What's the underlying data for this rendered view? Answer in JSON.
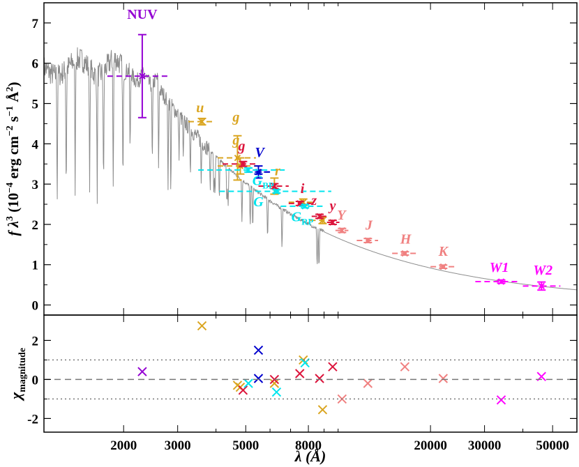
{
  "chart_data": {
    "type": "scatter",
    "subtype": "spectral-energy-distribution",
    "x_axis": {
      "label": "λ (Å)",
      "scale": "log",
      "range": [
        1100,
        60000
      ],
      "ticks": [
        2000,
        3000,
        5000,
        8000,
        20000,
        30000,
        50000
      ],
      "tick_labels": [
        "2000",
        "3000",
        "5000",
        "8000",
        "20000",
        "30000",
        "50000"
      ]
    },
    "top_panel": {
      "ylabel_main": "f λ",
      "ylabel_sup1": "3",
      "ylabel_units_a": "(10",
      "ylabel_units_b": "−4",
      "ylabel_units_c": " erg cm",
      "ylabel_units_d": "−2",
      "ylabel_units_e": " s",
      "ylabel_units_f": "−1",
      "ylabel_units_g": " Å",
      "ylabel_units_h": "2",
      "ylabel_units_i": ")",
      "ylim": [
        -0.25,
        7.5
      ],
      "yticks": [
        0,
        1,
        2,
        3,
        4,
        5,
        6,
        7
      ],
      "ytick_labels": [
        "0",
        "1",
        "2",
        "3",
        "4",
        "5",
        "6",
        "7"
      ]
    },
    "bottom_panel": {
      "ylabel_main": "χ",
      "ylabel_sub": "magnitude",
      "ylim": [
        -2.7,
        3.3
      ],
      "yticks": [
        -2,
        0,
        2
      ],
      "ytick_labels": [
        "-2",
        "0",
        "2"
      ],
      "ref_lines": [
        {
          "y": 0,
          "style": "dashed"
        },
        {
          "y": 1,
          "style": "dotted"
        },
        {
          "y": -1,
          "style": "dotted"
        }
      ]
    },
    "model_spectrum": {
      "name": "model",
      "color": "#8c8c8c"
    },
    "photometry": [
      {
        "band": "NUV",
        "color": "#9400d3",
        "wave": 2300,
        "w_lo": 1770,
        "w_hi": 2830,
        "flux": 5.68,
        "err": 1.03,
        "chi": 0.4
      },
      {
        "band": "u",
        "color": "#daa520",
        "wave": 3600,
        "w_lo": 3250,
        "w_hi": 3950,
        "flux": 4.55,
        "err": 0.08,
        "chi": 2.75
      },
      {
        "band": "g",
        "color": "#daa520",
        "wave": 4700,
        "w_lo": 4050,
        "w_hi": 5400,
        "flux": 3.65,
        "err": 0.55,
        "chi": -0.3
      },
      {
        "band": "g",
        "color": "#daa520",
        "wave": 4800,
        "w_lo": 4050,
        "w_hi": 5550,
        "flux": 3.45,
        "err": 0.2,
        "chi": -0.4
      },
      {
        "band": "r",
        "color": "#daa520",
        "wave": 6200,
        "w_lo": 5500,
        "w_hi": 6900,
        "flux": 2.95,
        "err": 0.2,
        "chi": -0.2
      },
      {
        "band": "i",
        "color": "#daa520",
        "wave": 7700,
        "w_lo": 6900,
        "w_hi": 8400,
        "flux": 2.55,
        "err": 0.08,
        "chi": 1.0
      },
      {
        "band": "z",
        "color": "#daa520",
        "wave": 8900,
        "w_lo": 8100,
        "w_hi": 9600,
        "flux": 2.1,
        "err": 0.08,
        "chi": -1.55
      },
      {
        "band": "g",
        "color": "#dc143c",
        "wave": 4900,
        "w_lo": 4200,
        "w_hi": 5500,
        "flux": 3.5,
        "err": 0.06,
        "chi": -0.55
      },
      {
        "band": "r",
        "color": "#dc143c",
        "wave": 6200,
        "w_lo": 5500,
        "w_hi": 6900,
        "flux": 2.95,
        "err": 0.06,
        "chi": 0.0
      },
      {
        "band": "i",
        "color": "#dc143c",
        "wave": 7500,
        "w_lo": 6900,
        "w_hi": 8200,
        "flux": 2.52,
        "err": 0.05,
        "chi": 0.3
      },
      {
        "band": "z",
        "color": "#dc143c",
        "wave": 8700,
        "w_lo": 8200,
        "w_hi": 9200,
        "flux": 2.2,
        "err": 0.05,
        "chi": 0.05
      },
      {
        "band": "y",
        "color": "#dc143c",
        "wave": 9600,
        "w_lo": 9200,
        "w_hi": 10100,
        "flux": 2.05,
        "err": 0.05,
        "chi": 0.65
      },
      {
        "band": "V",
        "color": "#0000cd",
        "wave": 5500,
        "w_lo": 5000,
        "w_hi": 6000,
        "flux": 3.3,
        "err": 0.15,
        "chi": 1.5
      },
      {
        "band": "V",
        "color": "#0000cd",
        "wave": 5500,
        "w_lo": 5050,
        "w_hi": 6000,
        "flux": 3.3,
        "err": 0.05,
        "chi": 0.05
      },
      {
        "band": "G_BP",
        "color": "#00e5ee",
        "wave": 5100,
        "w_lo": 3500,
        "w_hi": 6700,
        "flux": 3.35,
        "err": 0.05,
        "chi": -0.2
      },
      {
        "band": "G",
        "color": "#00e5ee",
        "wave": 6300,
        "w_lo": 4100,
        "w_hi": 9500,
        "flux": 2.82,
        "err": 0.04,
        "chi": -0.65
      },
      {
        "band": "G_RP",
        "color": "#00e5ee",
        "wave": 7800,
        "w_lo": 6500,
        "w_hi": 9000,
        "flux": 2.45,
        "err": 0.04,
        "chi": 0.85
      },
      {
        "band": "Y",
        "color": "#f08080",
        "wave": 10300,
        "w_lo": 9800,
        "w_hi": 10800,
        "flux": 1.85,
        "err": 0.05,
        "chi": -1.0
      },
      {
        "band": "J",
        "color": "#f08080",
        "wave": 12500,
        "w_lo": 11500,
        "w_hi": 13500,
        "flux": 1.6,
        "err": 0.05,
        "chi": -0.2
      },
      {
        "band": "H",
        "color": "#f08080",
        "wave": 16500,
        "w_lo": 15000,
        "w_hi": 18000,
        "flux": 1.28,
        "err": 0.04,
        "chi": 0.65
      },
      {
        "band": "K",
        "color": "#f08080",
        "wave": 22000,
        "w_lo": 20000,
        "w_hi": 24000,
        "flux": 0.95,
        "err": 0.04,
        "chi": 0.05
      },
      {
        "band": "W1",
        "color": "#ff00ff",
        "wave": 34000,
        "w_lo": 28000,
        "w_hi": 39000,
        "flux": 0.58,
        "err": 0.04,
        "chi": -1.05
      },
      {
        "band": "W2",
        "color": "#ff00ff",
        "wave": 46000,
        "w_lo": 40000,
        "w_hi": 53000,
        "flux": 0.47,
        "err": 0.1,
        "chi": 0.15
      }
    ],
    "annotations": [
      {
        "text": "NUV",
        "color": "#9400d3",
        "wave": 2300,
        "y": 7.1,
        "italic": false
      },
      {
        "text": "u",
        "color": "#daa520",
        "wave": 3550,
        "y": 4.78,
        "italic": true
      },
      {
        "text": "g",
        "color": "#daa520",
        "wave": 4650,
        "y": 4.55,
        "italic": true
      },
      {
        "text": "g",
        "color": "#daa520",
        "wave": 4650,
        "y": 3.98,
        "italic": true
      },
      {
        "text": "g",
        "color": "#dc143c",
        "wave": 4850,
        "y": 3.83,
        "italic": true
      },
      {
        "text": "V",
        "color": "#0000cd",
        "wave": 5550,
        "y": 3.68,
        "italic": true
      },
      {
        "text": "r",
        "color": "#daa520",
        "wave": 6350,
        "y": 3.22,
        "italic": true
      },
      {
        "text": "i",
        "color": "#dc143c",
        "wave": 7650,
        "y": 2.78,
        "italic": true
      },
      {
        "text": "z",
        "color": "#dc143c",
        "wave": 8350,
        "y": 2.48,
        "italic": true
      },
      {
        "text": "y",
        "color": "#dc143c",
        "wave": 9600,
        "y": 2.35,
        "italic": true
      },
      {
        "text": "Y",
        "color": "#f08080",
        "wave": 10250,
        "y": 2.12,
        "italic": true
      },
      {
        "text": "J",
        "color": "#f08080",
        "wave": 12600,
        "y": 1.87,
        "italic": true
      },
      {
        "text": "H",
        "color": "#f08080",
        "wave": 16600,
        "y": 1.52,
        "italic": true
      },
      {
        "text": "K",
        "color": "#f08080",
        "wave": 22000,
        "y": 1.22,
        "italic": true
      },
      {
        "text": "W1",
        "color": "#ff00ff",
        "wave": 33500,
        "y": 0.82,
        "italic": true
      },
      {
        "text": "W2",
        "color": "#ff00ff",
        "wave": 46500,
        "y": 0.75,
        "italic": true
      }
    ],
    "cyan_labels": [
      {
        "text": "G",
        "sub": "BP",
        "wave": 5700,
        "y": 2.98
      },
      {
        "text": "G",
        "sub": "",
        "wave": 5500,
        "y": 2.45
      },
      {
        "text": "G",
        "sub": "RP",
        "wave": 7650,
        "y": 2.08
      }
    ]
  }
}
